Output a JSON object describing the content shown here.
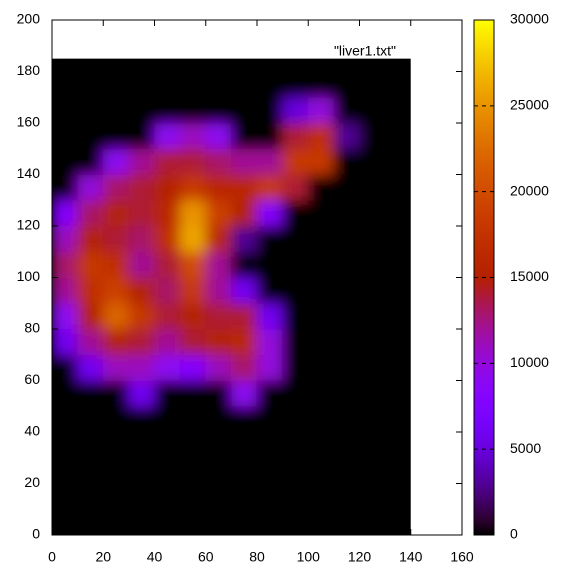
{
  "chart_data": {
    "type": "heatmap",
    "legend_label": "\"liver1.txt\"",
    "xlim": [
      0,
      160
    ],
    "xticks": [
      0,
      20,
      40,
      60,
      80,
      100,
      120,
      140,
      160
    ],
    "ylim": [
      0,
      200
    ],
    "yticks": [
      0,
      20,
      40,
      60,
      80,
      100,
      120,
      140,
      160,
      180,
      200
    ],
    "clim": [
      0,
      30000
    ],
    "cticks": [
      0,
      5000,
      10000,
      15000,
      20000,
      25000,
      30000
    ],
    "xbins": [
      0,
      10,
      20,
      30,
      40,
      50,
      60,
      70,
      80,
      90,
      100,
      110,
      120,
      130,
      140
    ],
    "ybins": [
      0,
      10,
      20,
      30,
      40,
      50,
      60,
      70,
      80,
      90,
      100,
      110,
      120,
      130,
      140,
      150,
      160,
      170,
      180,
      185
    ],
    "values": [
      [
        0,
        0,
        0,
        0,
        0,
        0,
        0,
        0,
        0,
        0,
        0,
        0,
        0,
        0
      ],
      [
        0,
        0,
        0,
        0,
        0,
        0,
        0,
        0,
        0,
        0,
        0,
        0,
        0,
        0
      ],
      [
        0,
        0,
        0,
        0,
        0,
        0,
        0,
        0,
        0,
        0,
        0,
        0,
        0,
        0
      ],
      [
        0,
        0,
        0,
        0,
        0,
        0,
        0,
        0,
        0,
        0,
        0,
        0,
        0,
        0
      ],
      [
        0,
        0,
        0,
        0,
        0,
        0,
        0,
        0,
        0,
        0,
        0,
        0,
        0,
        0
      ],
      [
        0,
        0,
        0,
        6000,
        0,
        0,
        0,
        9000,
        0,
        0,
        0,
        0,
        0,
        0
      ],
      [
        0,
        6000,
        11000,
        11000,
        9000,
        8000,
        11000,
        13000,
        10000,
        0,
        0,
        0,
        0,
        0
      ],
      [
        6000,
        12000,
        15000,
        14000,
        12000,
        14000,
        15000,
        16000,
        10000,
        0,
        0,
        0,
        0,
        0
      ],
      [
        9000,
        15000,
        22000,
        18000,
        14000,
        15000,
        14000,
        14000,
        6000,
        0,
        0,
        0,
        0,
        0
      ],
      [
        12000,
        17000,
        19000,
        15000,
        13000,
        18000,
        12000,
        6000,
        0,
        0,
        0,
        0,
        0,
        0
      ],
      [
        13000,
        18000,
        17000,
        12000,
        14000,
        20000,
        12000,
        0,
        0,
        0,
        0,
        0,
        0,
        0
      ],
      [
        11000,
        15000,
        14000,
        13000,
        17000,
        26000,
        16000,
        3000,
        0,
        0,
        0,
        0,
        0,
        0
      ],
      [
        8000,
        13000,
        15000,
        14000,
        16000,
        25000,
        19000,
        15000,
        8000,
        0,
        0,
        0,
        0,
        0
      ],
      [
        0,
        10000,
        13000,
        14000,
        15000,
        18000,
        16000,
        16000,
        18000,
        14000,
        0,
        0,
        0,
        0
      ],
      [
        0,
        0,
        9000,
        12000,
        14000,
        14000,
        13000,
        12000,
        12000,
        18000,
        18000,
        0,
        0,
        0
      ],
      [
        0,
        0,
        0,
        0,
        9000,
        11000,
        9000,
        0,
        0,
        14000,
        17000,
        3000,
        0,
        0
      ],
      [
        0,
        0,
        0,
        0,
        0,
        0,
        0,
        0,
        0,
        5000,
        10000,
        0,
        0,
        0
      ],
      [
        0,
        0,
        0,
        0,
        0,
        0,
        0,
        0,
        0,
        0,
        0,
        0,
        0,
        0
      ],
      [
        0,
        0,
        0,
        0,
        0,
        0,
        0,
        0,
        0,
        0,
        0,
        0,
        0,
        0
      ]
    ]
  }
}
